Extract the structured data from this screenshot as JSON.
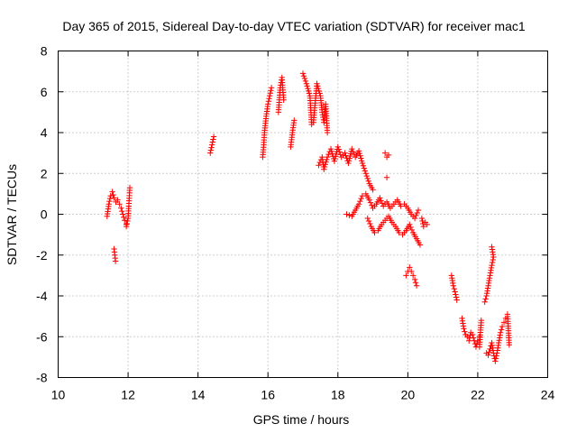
{
  "chart_data": {
    "type": "scatter",
    "title": "Day 365 of 2015, Sidereal Day-to-day VTEC variation (SDTVAR) for receiver mac1",
    "xlabel": "GPS time / hours",
    "ylabel": "SDTVAR / TECUs",
    "xlim": [
      10,
      24
    ],
    "ylim": [
      -8,
      8
    ],
    "xticks": [
      "10",
      "12",
      "14",
      "16",
      "18",
      "20",
      "22",
      "24"
    ],
    "yticks": [
      "-8",
      "-6",
      "-4",
      "-2",
      "0",
      "2",
      "4",
      "6",
      "8"
    ],
    "grid": true,
    "marker": "+",
    "color": "#ff0000",
    "series": [
      {
        "name": "SDTVAR",
        "segments": [
          [
            [
              11.4,
              -0.1
            ],
            [
              11.45,
              0.5
            ],
            [
              11.5,
              0.9
            ],
            [
              11.55,
              1.1
            ],
            [
              11.6,
              0.8
            ],
            [
              11.65,
              0.6
            ],
            [
              11.7,
              0.7
            ],
            [
              11.75,
              0.5
            ],
            [
              11.8,
              0.3
            ],
            [
              11.85,
              0.0
            ],
            [
              11.9,
              -0.3
            ],
            [
              11.95,
              -0.5
            ]
          ],
          [
            [
              11.6,
              -1.7
            ],
            [
              11.62,
              -2.0
            ],
            [
              11.64,
              -2.3
            ]
          ],
          [
            [
              11.95,
              -0.6
            ],
            [
              12.0,
              -0.2
            ],
            [
              12.02,
              0.4
            ],
            [
              12.05,
              1.3
            ]
          ],
          [
            [
              14.35,
              3.0
            ],
            [
              14.4,
              3.4
            ],
            [
              14.45,
              3.8
            ]
          ],
          [
            [
              15.85,
              2.8
            ],
            [
              15.88,
              3.4
            ],
            [
              15.9,
              4.0
            ],
            [
              15.95,
              4.8
            ],
            [
              16.0,
              5.4
            ],
            [
              16.05,
              5.8
            ],
            [
              16.1,
              6.2
            ]
          ],
          [
            [
              16.3,
              5.0
            ],
            [
              16.35,
              6.2
            ],
            [
              16.4,
              6.7
            ],
            [
              16.45,
              5.6
            ]
          ],
          [
            [
              16.65,
              3.3
            ],
            [
              16.7,
              4.0
            ],
            [
              16.75,
              4.6
            ]
          ],
          [
            [
              17.0,
              6.9
            ],
            [
              17.1,
              6.4
            ],
            [
              17.2,
              5.8
            ],
            [
              17.25,
              4.4
            ],
            [
              17.3,
              4.5
            ],
            [
              17.4,
              6.4
            ],
            [
              17.5,
              5.8
            ],
            [
              17.55,
              5.0
            ],
            [
              17.6,
              4.5
            ],
            [
              17.65,
              5.4
            ],
            [
              17.7,
              4.0
            ]
          ],
          [
            [
              17.45,
              2.4
            ],
            [
              17.55,
              2.8
            ],
            [
              17.6,
              2.2
            ],
            [
              17.7,
              2.8
            ],
            [
              17.8,
              3.2
            ],
            [
              17.9,
              2.6
            ],
            [
              18.0,
              3.3
            ],
            [
              18.1,
              2.8
            ],
            [
              18.2,
              3.0
            ],
            [
              18.3,
              2.5
            ],
            [
              18.4,
              3.2
            ],
            [
              18.5,
              2.8
            ],
            [
              18.6,
              3.1
            ],
            [
              18.7,
              2.5
            ],
            [
              18.8,
              2.0
            ],
            [
              18.9,
              1.5
            ],
            [
              19.0,
              1.2
            ]
          ],
          [
            [
              18.25,
              0.0
            ],
            [
              18.4,
              -0.1
            ],
            [
              18.5,
              0.2
            ],
            [
              18.6,
              0.5
            ],
            [
              18.7,
              0.9
            ],
            [
              18.8,
              1.0
            ],
            [
              18.9,
              0.7
            ],
            [
              19.0,
              0.3
            ],
            [
              19.1,
              0.5
            ],
            [
              19.2,
              0.8
            ],
            [
              19.3,
              0.4
            ],
            [
              19.4,
              0.6
            ],
            [
              19.5,
              0.3
            ],
            [
              19.6,
              0.5
            ],
            [
              19.7,
              0.7
            ],
            [
              19.8,
              0.4
            ],
            [
              19.9,
              0.5
            ],
            [
              20.0,
              0.3
            ],
            [
              20.1,
              0.0
            ],
            [
              20.2,
              -0.2
            ],
            [
              20.3,
              0.2
            ]
          ],
          [
            [
              18.85,
              -0.2
            ],
            [
              18.95,
              -0.6
            ],
            [
              19.05,
              -0.9
            ],
            [
              19.15,
              -0.8
            ],
            [
              19.25,
              -0.5
            ],
            [
              19.35,
              -0.3
            ],
            [
              19.45,
              -0.1
            ],
            [
              19.55,
              -0.4
            ],
            [
              19.65,
              -0.6
            ],
            [
              19.75,
              -0.9
            ],
            [
              19.85,
              -1.0
            ],
            [
              19.95,
              -0.8
            ],
            [
              20.05,
              -0.5
            ],
            [
              20.15,
              -0.9
            ],
            [
              20.25,
              -1.2
            ],
            [
              20.35,
              -1.5
            ]
          ],
          [
            [
              19.35,
              3.0
            ],
            [
              19.4,
              2.8
            ],
            [
              19.45,
              2.9
            ]
          ],
          [
            [
              19.4,
              1.8
            ]
          ],
          [
            [
              20.4,
              -0.2
            ],
            [
              20.45,
              -0.6
            ],
            [
              20.5,
              -0.4
            ],
            [
              20.55,
              -0.5
            ]
          ],
          [
            [
              19.95,
              -3.0
            ],
            [
              20.0,
              -2.8
            ],
            [
              20.05,
              -2.6
            ],
            [
              20.1,
              -2.8
            ],
            [
              20.15,
              -3.0
            ],
            [
              20.2,
              -3.2
            ],
            [
              20.25,
              -3.5
            ]
          ],
          [
            [
              21.25,
              -3.0
            ],
            [
              21.3,
              -3.5
            ],
            [
              21.35,
              -3.8
            ],
            [
              21.4,
              -4.2
            ]
          ],
          [
            [
              21.55,
              -5.1
            ],
            [
              21.6,
              -5.6
            ],
            [
              21.65,
              -5.9
            ],
            [
              21.7,
              -6.0
            ],
            [
              21.75,
              -6.2
            ],
            [
              21.8,
              -5.8
            ],
            [
              21.85,
              -5.9
            ],
            [
              21.9,
              -6.2
            ],
            [
              21.95,
              -6.5
            ],
            [
              22.0,
              -6.2
            ],
            [
              22.05,
              -6.0
            ]
          ],
          [
            [
              22.1,
              -5.2
            ],
            [
              22.05,
              -6.5
            ]
          ],
          [
            [
              22.2,
              -4.3
            ],
            [
              22.25,
              -4.0
            ],
            [
              22.3,
              -3.5
            ],
            [
              22.35,
              -3.0
            ],
            [
              22.4,
              -2.5
            ],
            [
              22.45,
              -2.1
            ],
            [
              22.4,
              -1.6
            ]
          ],
          [
            [
              22.25,
              -6.8
            ],
            [
              22.3,
              -6.9
            ],
            [
              22.35,
              -6.6
            ],
            [
              22.4,
              -6.3
            ],
            [
              22.45,
              -6.8
            ],
            [
              22.5,
              -7.2
            ],
            [
              22.55,
              -6.8
            ],
            [
              22.6,
              -6.3
            ],
            [
              22.65,
              -5.8
            ],
            [
              22.7,
              -5.5
            ],
            [
              22.75,
              -5.3
            ],
            [
              22.8,
              -5.1
            ],
            [
              22.85,
              -4.9
            ],
            [
              22.9,
              -6.4
            ]
          ]
        ]
      }
    ]
  }
}
